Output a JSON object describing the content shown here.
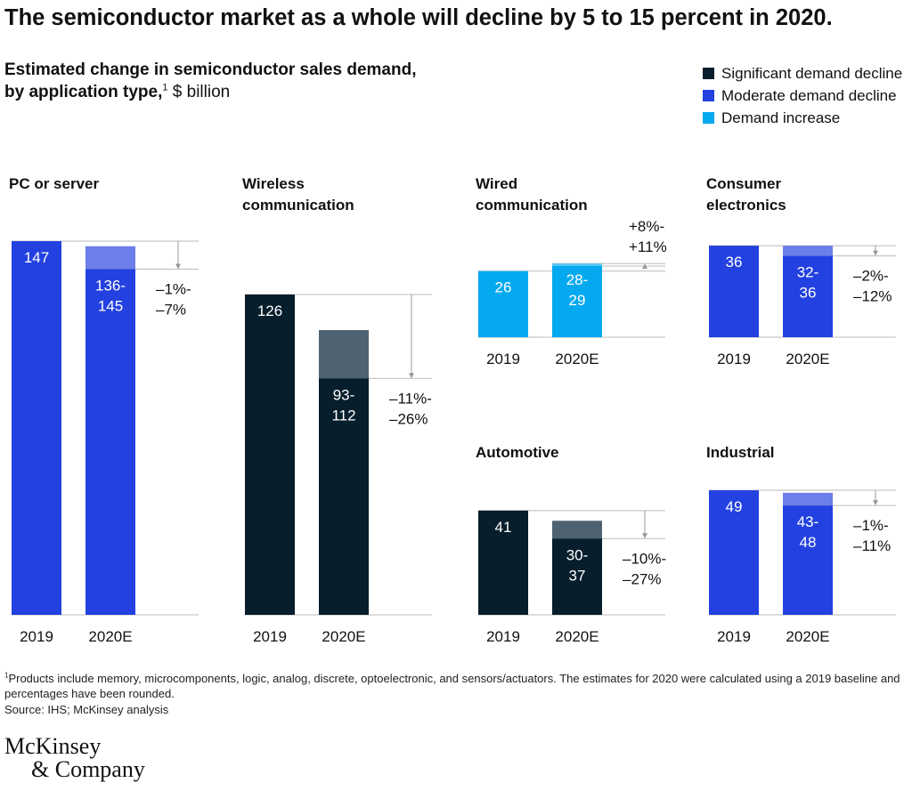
{
  "headline": "The semiconductor market as a whole will decline by 5 to 15 percent in 2020.",
  "subtitle": {
    "bold_text": "Estimated change in semiconductor sales demand, by application type,",
    "footnote_mark": "1",
    "unit": " $ billion"
  },
  "colors": {
    "significant": "#071e2c",
    "significant_light": "#4f6271",
    "moderate": "#2341e0",
    "moderate_light": "#6b7ee9",
    "increase": "#04a9ef",
    "increase_light": "#59c7f4",
    "axis": "#bbbbbb",
    "arrow": "#999999"
  },
  "legend": [
    {
      "label": "Significant demand decline",
      "color": "#071e2c"
    },
    {
      "label": "Moderate demand decline",
      "color": "#2341e0"
    },
    {
      "label": "Demand increase",
      "color": "#04a9ef"
    }
  ],
  "chart_data": [
    {
      "type": "bar",
      "title": "PC or server",
      "category": "moderate",
      "categories": [
        "2019",
        "2020E"
      ],
      "value_2019": 147,
      "range_2020": [
        136,
        145
      ],
      "label_2019": "147",
      "label_2020": [
        "136-",
        "145"
      ],
      "change": [
        "–1%-",
        "–7%"
      ]
    },
    {
      "type": "bar",
      "title": "Wireless communication",
      "category": "significant",
      "categories": [
        "2019",
        "2020E"
      ],
      "value_2019": 126,
      "range_2020": [
        93,
        112
      ],
      "label_2019": "126",
      "label_2020": [
        "93-",
        "112"
      ],
      "change": [
        "–11%-",
        "–26%"
      ]
    },
    {
      "type": "bar",
      "title": "Wired communication",
      "category": "increase",
      "categories": [
        "2019",
        "2020E"
      ],
      "value_2019": 26,
      "range_2020": [
        28,
        29
      ],
      "label_2019": "26",
      "label_2020": [
        "28-",
        "29"
      ],
      "change": [
        "+8%-",
        "+11%"
      ]
    },
    {
      "type": "bar",
      "title": "Consumer electronics",
      "category": "moderate",
      "categories": [
        "2019",
        "2020E"
      ],
      "value_2019": 36,
      "range_2020": [
        32,
        36
      ],
      "label_2019": "36",
      "label_2020": [
        "32-",
        "36"
      ],
      "change": [
        "–2%-",
        "–12%"
      ]
    },
    {
      "type": "bar",
      "title": "Automotive",
      "category": "significant",
      "categories": [
        "2019",
        "2020E"
      ],
      "value_2019": 41,
      "range_2020": [
        30,
        37
      ],
      "label_2019": "41",
      "label_2020": [
        "30-",
        "37"
      ],
      "change": [
        "–10%-",
        "–27%"
      ]
    },
    {
      "type": "bar",
      "title": "Industrial",
      "category": "moderate",
      "categories": [
        "2019",
        "2020E"
      ],
      "value_2019": 49,
      "range_2020": [
        43,
        48
      ],
      "label_2019": "49",
      "label_2020": [
        "43-",
        "48"
      ],
      "change": [
        "–1%-",
        "–11%"
      ]
    }
  ],
  "footnote": {
    "mark": "1",
    "text": "Products include memory, microcomponents, logic, analog, discrete, optoelectronic, and sensors/actuators. The estimates for 2020 were calculated using a 2019 baseline and percentages have been rounded."
  },
  "source": "Source: IHS; McKinsey analysis",
  "logo": {
    "line1": "McKinsey",
    "line2": "& Company"
  }
}
